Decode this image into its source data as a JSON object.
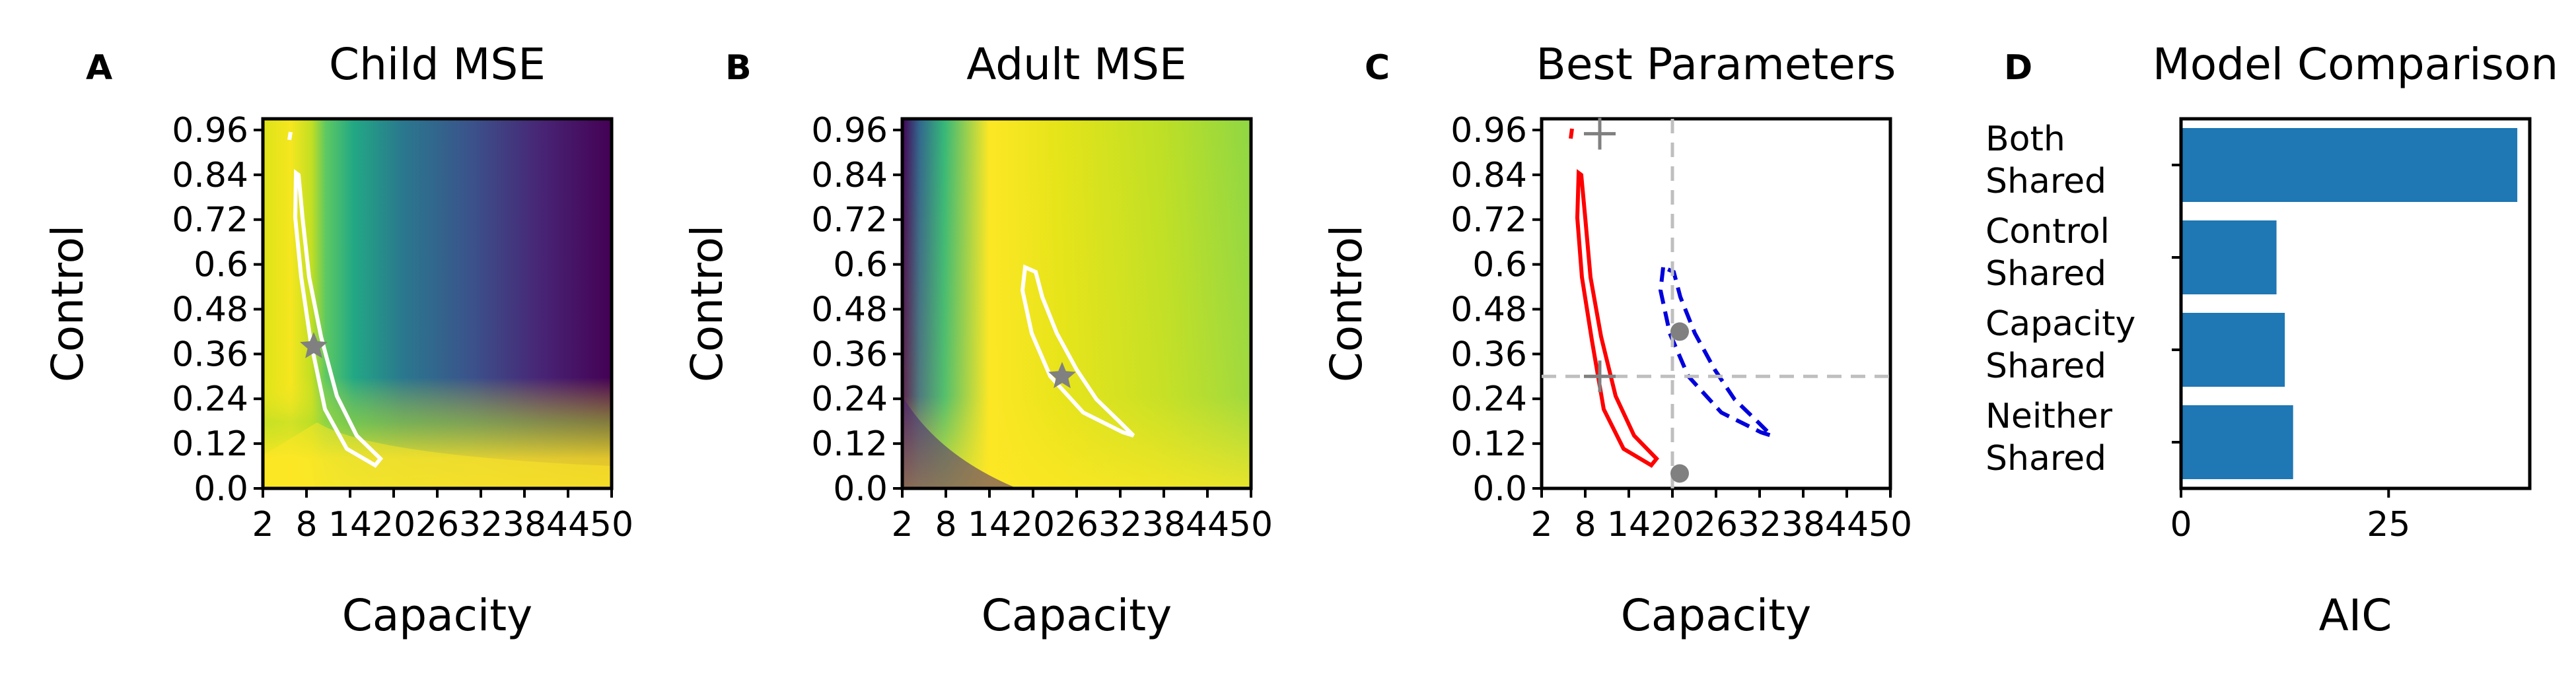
{
  "chart_data": [
    {
      "panel_label": "A",
      "type": "heatmap",
      "title": "Child MSE",
      "xlabel": "Capacity",
      "ylabel": "Control",
      "xticks": [
        "2",
        "8",
        "14",
        "20",
        "26",
        "32",
        "38",
        "44",
        "50"
      ],
      "yticks": [
        "0.0",
        "0.12",
        "0.24",
        "0.36",
        "0.48",
        "0.6",
        "0.72",
        "0.84",
        "0.96"
      ],
      "xlim": [
        2,
        50
      ],
      "ylim": [
        0.0,
        0.99
      ],
      "colormap": "viridis",
      "best_fit": {
        "x": 9,
        "y": 0.38
      }
    },
    {
      "panel_label": "B",
      "type": "heatmap",
      "title": "Adult MSE",
      "xlabel": "Capacity",
      "ylabel": "Control",
      "xticks": [
        "2",
        "8",
        "14",
        "20",
        "26",
        "32",
        "38",
        "44",
        "50"
      ],
      "yticks": [
        "0.0",
        "0.12",
        "0.24",
        "0.36",
        "0.48",
        "0.6",
        "0.72",
        "0.84",
        "0.96"
      ],
      "xlim": [
        2,
        50
      ],
      "ylim": [
        0.0,
        0.99
      ],
      "colormap": "viridis",
      "best_fit": {
        "x": 24,
        "y": 0.3
      }
    },
    {
      "panel_label": "C",
      "type": "line",
      "title": "Best Parameters",
      "xlabel": "Capacity",
      "ylabel": "Control",
      "xticks": [
        "2",
        "8",
        "14",
        "20",
        "26",
        "32",
        "38",
        "44",
        "50"
      ],
      "yticks": [
        "0.0",
        "0.12",
        "0.24",
        "0.36",
        "0.48",
        "0.6",
        "0.72",
        "0.84",
        "0.96"
      ],
      "xlim": [
        2,
        50
      ],
      "ylim": [
        0.0,
        0.99
      ],
      "reference_lines": {
        "x": 20,
        "y": 0.3
      },
      "markers": [
        {
          "shape": "plus",
          "x": 10,
          "y": 0.95
        },
        {
          "shape": "plus",
          "x": 10,
          "y": 0.3
        },
        {
          "shape": "dot",
          "x": 21,
          "y": 0.42
        },
        {
          "shape": "dot",
          "x": 21,
          "y": 0.04
        }
      ],
      "series": [
        {
          "color": "#ff0000",
          "style": "solid"
        },
        {
          "color": "#0000dd",
          "style": "dashed"
        }
      ]
    },
    {
      "panel_label": "D",
      "type": "bar",
      "orientation": "horizontal",
      "title": "Model Comparison",
      "xlabel": "AIC",
      "categories": [
        [
          "Both",
          "Shared"
        ],
        [
          "Control",
          "Shared"
        ],
        [
          "Capacity",
          "Shared"
        ],
        [
          "Neither",
          "Shared"
        ]
      ],
      "values": [
        40.5,
        11.5,
        12.5,
        13.5
      ],
      "xticks": [
        "0",
        "25"
      ],
      "xlim": [
        0,
        42
      ],
      "color": "#1f77b4"
    }
  ]
}
